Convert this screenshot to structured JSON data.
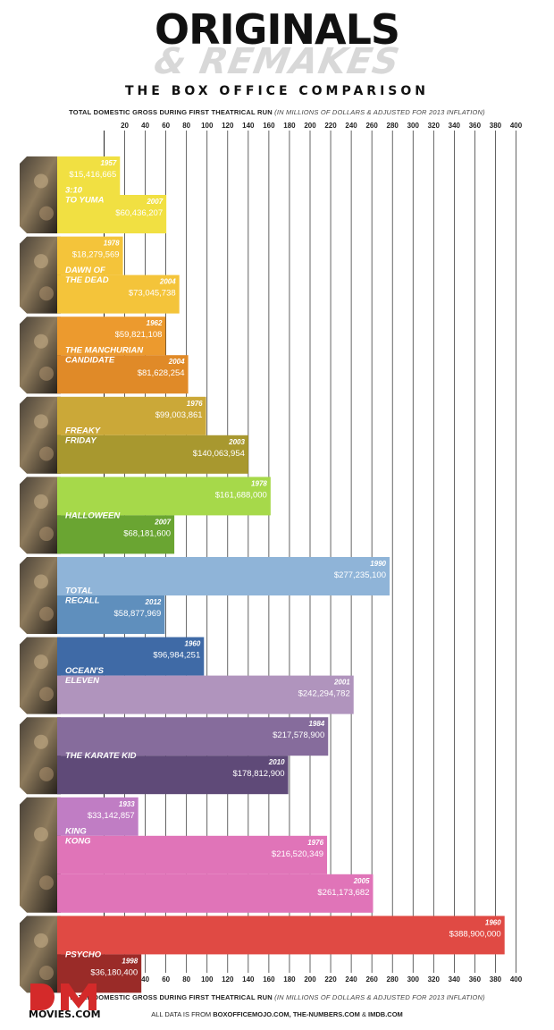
{
  "header": {
    "title": "ORIGINALS",
    "subtitle": "& REMAKES",
    "tagline": "THE BOX OFFICE COMPARISON",
    "axis_caption_bold": "TOTAL DOMESTIC GROSS DURING FIRST THEATRICAL RUN",
    "axis_caption_italic": "(IN MILLIONS OF DOLLARS & ADJUSTED FOR 2013 INFLATION)"
  },
  "footer": {
    "sources_prefix": "ALL DATA IS FROM",
    "sources_names": "BOXOFFICEMOJO.COM, THE-NUMBERS.COM",
    "sources_amp": "&",
    "sources_last": "IMDB.COM",
    "logo_text": "MOVIES.COM"
  },
  "chart_data": {
    "type": "bar",
    "orientation": "horizontal",
    "xlabel": "TOTAL DOMESTIC GROSS DURING FIRST THEATRICAL RUN (IN MILLIONS OF DOLLARS & ADJUSTED FOR 2013 INFLATION)",
    "xlim": [
      0,
      400
    ],
    "ticks": [
      20,
      40,
      60,
      80,
      100,
      120,
      140,
      160,
      180,
      200,
      220,
      240,
      260,
      280,
      300,
      320,
      340,
      360,
      380,
      400
    ],
    "grid": true,
    "groups": [
      {
        "film": "3:10 TO YUMA",
        "film_lines": [
          "3:10",
          "TO YUMA"
        ],
        "colors": [
          "#f1e042",
          "#f1e042"
        ],
        "bars": [
          {
            "year": "1957",
            "value": 15.416665,
            "label": "$15,416,665"
          },
          {
            "year": "2007",
            "value": 60.436207,
            "label": "$60,436,207"
          }
        ]
      },
      {
        "film": "DAWN OF THE DEAD",
        "film_lines": [
          "DAWN OF",
          "THE DEAD"
        ],
        "colors": [
          "#f4c43a",
          "#f4c43a"
        ],
        "bars": [
          {
            "year": "1978",
            "value": 18.279569,
            "label": "$18,279,569"
          },
          {
            "year": "2004",
            "value": 73.045738,
            "label": "$73,045,738"
          }
        ]
      },
      {
        "film": "THE MANCHURIAN CANDIDATE",
        "film_lines": [
          "THE MANCHURIAN",
          "CANDIDATE"
        ],
        "colors": [
          "#ec9a2e",
          "#e08a28"
        ],
        "bars": [
          {
            "year": "1962",
            "value": 59.821108,
            "label": "$59,821,108"
          },
          {
            "year": "2004",
            "value": 81.628254,
            "label": "$81,628,254"
          }
        ]
      },
      {
        "film": "FREAKY FRIDAY",
        "film_lines": [
          "FREAKY",
          "FRIDAY"
        ],
        "colors": [
          "#cba838",
          "#a8982f"
        ],
        "bars": [
          {
            "year": "1976",
            "value": 99.003861,
            "label": "$99,003,861"
          },
          {
            "year": "2003",
            "value": 140.063954,
            "label": "$140,063,954"
          }
        ]
      },
      {
        "film": "HALLOWEEN",
        "film_lines": [
          "HALLOWEEN"
        ],
        "colors": [
          "#a6d94a",
          "#6aa532"
        ],
        "bars": [
          {
            "year": "1978",
            "value": 161.688,
            "label": "$161,688,000"
          },
          {
            "year": "2007",
            "value": 68.1816,
            "label": "$68,181,600"
          }
        ]
      },
      {
        "film": "TOTAL RECALL",
        "film_lines": [
          "TOTAL",
          "RECALL"
        ],
        "colors": [
          "#8fb4d8",
          "#5f8fbd"
        ],
        "bars": [
          {
            "year": "1990",
            "value": 277.2351,
            "label": "$277,235,100"
          },
          {
            "year": "2012",
            "value": 58.877969,
            "label": "$58,877,969"
          }
        ]
      },
      {
        "film": "OCEAN'S ELEVEN",
        "film_lines": [
          "OCEAN'S",
          "ELEVEN"
        ],
        "colors": [
          "#3f6aa6",
          "#b094bd"
        ],
        "bars": [
          {
            "year": "1960",
            "value": 96.984251,
            "label": "$96,984,251"
          },
          {
            "year": "2001",
            "value": 242.294782,
            "label": "$242,294,782"
          }
        ]
      },
      {
        "film": "THE KARATE KID",
        "film_lines": [
          "THE KARATE KID"
        ],
        "colors": [
          "#866c9c",
          "#5f4a78"
        ],
        "bars": [
          {
            "year": "1984",
            "value": 217.5789,
            "label": "$217,578,900"
          },
          {
            "year": "2010",
            "value": 178.8129,
            "label": "$178,812,900"
          }
        ]
      },
      {
        "film": "KING KONG",
        "film_lines": [
          "KING",
          "KONG"
        ],
        "colors": [
          "#c07dc4",
          "#e074b8"
        ],
        "bars": [
          {
            "year": "1933",
            "value": 33.142857,
            "label": "$33,142,857"
          },
          {
            "year": "1976",
            "value": 216.520349,
            "label": "$216,520,349"
          },
          {
            "year": "2005",
            "value": 261.173682,
            "label": "$261,173,682"
          }
        ]
      },
      {
        "film": "PSYCHO",
        "film_lines": [
          "PSYCHO"
        ],
        "colors": [
          "#e04a44",
          "#9a2b28"
        ],
        "bars": [
          {
            "year": "1960",
            "value": 388.9,
            "label": "$388,900,000"
          },
          {
            "year": "1998",
            "value": 36.1804,
            "label": "$36,180,400"
          }
        ]
      }
    ]
  }
}
